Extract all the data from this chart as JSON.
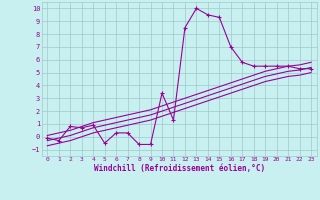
{
  "xlabel": "Windchill (Refroidissement éolien,°C)",
  "bg_color": "#c8f0f0",
  "line_color": "#990099",
  "grid_color": "#a0c8c8",
  "xlim": [
    -0.5,
    23.5
  ],
  "ylim": [
    -1.5,
    10.5
  ],
  "xtick_labels": [
    "0",
    "1",
    "2",
    "3",
    "4",
    "5",
    "6",
    "7",
    "8",
    "9",
    "10",
    "11",
    "12",
    "13",
    "14",
    "15",
    "16",
    "17",
    "18",
    "19",
    "20",
    "21",
    "22",
    "23"
  ],
  "ytick_labels": [
    "-1",
    "0",
    "1",
    "2",
    "3",
    "4",
    "5",
    "6",
    "7",
    "8",
    "9",
    "10"
  ],
  "xtick_vals": [
    0,
    1,
    2,
    3,
    4,
    5,
    6,
    7,
    8,
    9,
    10,
    11,
    12,
    13,
    14,
    15,
    16,
    17,
    18,
    19,
    20,
    21,
    22,
    23
  ],
  "ytick_vals": [
    -1,
    0,
    1,
    2,
    3,
    4,
    5,
    6,
    7,
    8,
    9,
    10
  ],
  "data_x": [
    0,
    1,
    2,
    3,
    4,
    5,
    6,
    7,
    8,
    9,
    10,
    11,
    12,
    13,
    14,
    15,
    16,
    17,
    18,
    19,
    20,
    21,
    22,
    23
  ],
  "data_y": [
    -0.1,
    -0.3,
    0.8,
    0.7,
    0.9,
    -0.5,
    0.3,
    0.3,
    -0.6,
    -0.6,
    3.4,
    1.3,
    8.5,
    10.0,
    9.5,
    9.3,
    7.0,
    5.8,
    5.5,
    5.5,
    5.5,
    5.5,
    5.3,
    5.3
  ],
  "trend1_x": [
    0,
    1,
    2,
    3,
    4,
    5,
    6,
    7,
    8,
    9,
    10,
    11,
    12,
    13,
    14,
    15,
    16,
    17,
    18,
    19,
    20,
    21,
    22,
    23
  ],
  "trend1_y": [
    -0.3,
    -0.1,
    0.1,
    0.4,
    0.7,
    0.9,
    1.1,
    1.3,
    1.5,
    1.7,
    2.0,
    2.3,
    2.6,
    2.9,
    3.2,
    3.5,
    3.8,
    4.1,
    4.4,
    4.7,
    4.9,
    5.1,
    5.2,
    5.4
  ],
  "trend2_x": [
    0,
    1,
    2,
    3,
    4,
    5,
    6,
    7,
    8,
    9,
    10,
    11,
    12,
    13,
    14,
    15,
    16,
    17,
    18,
    19,
    20,
    21,
    22,
    23
  ],
  "trend2_y": [
    -0.7,
    -0.5,
    -0.3,
    0.0,
    0.3,
    0.5,
    0.7,
    0.9,
    1.1,
    1.3,
    1.6,
    1.9,
    2.2,
    2.5,
    2.8,
    3.1,
    3.4,
    3.7,
    4.0,
    4.3,
    4.5,
    4.7,
    4.8,
    5.0
  ],
  "trend3_x": [
    0,
    1,
    2,
    3,
    4,
    5,
    6,
    7,
    8,
    9,
    10,
    11,
    12,
    13,
    14,
    15,
    16,
    17,
    18,
    19,
    20,
    21,
    22,
    23
  ],
  "trend3_y": [
    0.1,
    0.3,
    0.5,
    0.8,
    1.1,
    1.3,
    1.5,
    1.7,
    1.9,
    2.1,
    2.4,
    2.7,
    3.0,
    3.3,
    3.6,
    3.9,
    4.2,
    4.5,
    4.8,
    5.1,
    5.3,
    5.5,
    5.6,
    5.8
  ]
}
